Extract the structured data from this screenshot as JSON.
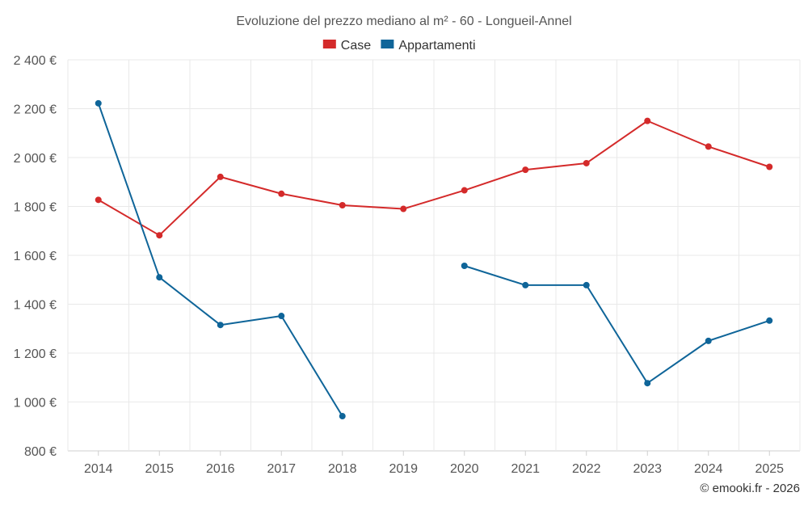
{
  "chart_data": {
    "type": "line",
    "title": "Evoluzione del prezzo mediano al m² - 60 - Longueil-Annel",
    "xlabel": "",
    "ylabel": "",
    "categories": [
      "2014",
      "2015",
      "2016",
      "2017",
      "2018",
      "2019",
      "2020",
      "2021",
      "2022",
      "2023",
      "2024",
      "2025"
    ],
    "ylim": [
      800,
      2400
    ],
    "yticks": [
      800,
      1000,
      1200,
      1400,
      1600,
      1800,
      2000,
      2200,
      2400
    ],
    "ytick_labels": [
      "800 €",
      "1 000 €",
      "1 200 €",
      "1 400 €",
      "1 600 €",
      "1 800 €",
      "2 000 €",
      "2 200 €",
      "2 400 €"
    ],
    "grid": true,
    "legend_position": "top-center",
    "series": [
      {
        "name": "Case",
        "color": "#d42a2a",
        "values": [
          1827,
          1682,
          1921,
          1852,
          1805,
          1790,
          1866,
          1950,
          1977,
          2150,
          2045,
          1962
        ]
      },
      {
        "name": "Appartamenti",
        "color": "#0f6599",
        "values": [
          2222,
          1510,
          1315,
          1352,
          942,
          null,
          1557,
          1478,
          1478,
          1077,
          1250,
          1333
        ]
      }
    ]
  },
  "credit": "© emooki.fr - 2026"
}
